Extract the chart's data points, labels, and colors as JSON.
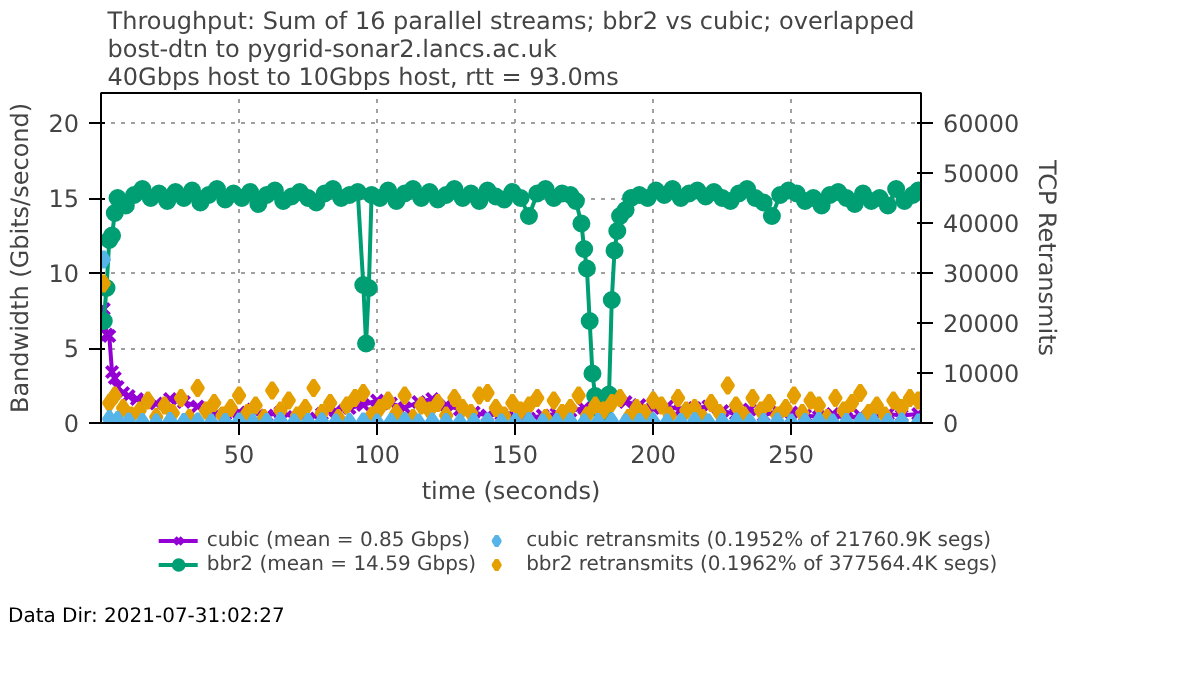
{
  "chart_data": {
    "type": "line",
    "title": "Throughput: Sum of 16 parallel streams; bbr2 vs cubic; overlapped\nbost-dtn to pygrid-sonar2.lancs.ac.uk\n40Gbps host to 10Gbps host, rtt = 93.0ms",
    "xlabel": "time (seconds)",
    "ylabel": "Bandwidth (Gbits/second)",
    "y2label": "TCP Retransmits",
    "xlim": [
      0,
      297
    ],
    "xticks": [
      50,
      100,
      150,
      200,
      250
    ],
    "ylim": [
      0,
      22
    ],
    "yticks": [
      0,
      5,
      10,
      15,
      20
    ],
    "y2lim": [
      0,
      66000
    ],
    "y2ticks": [
      0,
      10000,
      20000,
      30000,
      40000,
      50000,
      60000
    ],
    "grid": true,
    "legend": "bottom",
    "annotations": [
      "Data Dir: 2021-07-31:02:27"
    ],
    "series": [
      {
        "name": "cubic (mean = 0.85 Gbps)",
        "marker": "cross",
        "color": "#9400d3",
        "x": [
          1,
          2,
          3,
          4,
          5,
          6,
          8,
          10,
          13,
          16,
          20,
          25,
          30,
          35,
          40,
          45,
          50,
          55,
          60,
          65,
          70,
          75,
          80,
          85,
          90,
          95,
          100,
          105,
          110,
          115,
          120,
          125,
          130,
          135,
          140,
          145,
          150,
          155,
          160,
          165,
          170,
          175,
          180,
          185,
          190,
          195,
          200,
          205,
          210,
          215,
          220,
          225,
          230,
          235,
          240,
          245,
          250,
          255,
          260,
          265,
          270,
          275,
          280,
          285,
          290,
          296
        ],
        "values": [
          7.6,
          5.9,
          5.8,
          3.4,
          3.0,
          2.4,
          2.0,
          1.8,
          1.6,
          1.5,
          1.3,
          1.6,
          1.4,
          1.1,
          0.8,
          0.6,
          0.7,
          0.9,
          0.5,
          0.7,
          0.4,
          0.3,
          0.6,
          0.8,
          1.0,
          1.2,
          1.5,
          1.3,
          1.0,
          1.4,
          1.6,
          1.2,
          0.9,
          0.7,
          0.5,
          0.6,
          0.4,
          0.3,
          0.5,
          0.6,
          0.8,
          1.0,
          null,
          null,
          1.4,
          1.2,
          1.0,
          1.1,
          0.9,
          1.0,
          1.1,
          0.8,
          0.6,
          0.9,
          0.5,
          0.8,
          0.7,
          0.5,
          0.4,
          0.6,
          0.3,
          0.5,
          0.4,
          0.6,
          0.5,
          0.6
        ]
      },
      {
        "name": "bbr2 (mean = 14.59 Gbps)",
        "marker": "circle",
        "color": "#009e73",
        "x": [
          1,
          2,
          3,
          4,
          5,
          6,
          9,
          12,
          15,
          18,
          21,
          24,
          27,
          30,
          33,
          36,
          39,
          42,
          45,
          48,
          51,
          54,
          57,
          60,
          63,
          66,
          69,
          72,
          75,
          78,
          81,
          84,
          87,
          90,
          93,
          95,
          96,
          97,
          98,
          101,
          104,
          107,
          110,
          113,
          116,
          119,
          122,
          125,
          128,
          131,
          134,
          137,
          140,
          143,
          146,
          149,
          152,
          155,
          158,
          161,
          164,
          167,
          170,
          172,
          174,
          175,
          176,
          177,
          178,
          179,
          180,
          182,
          184,
          185,
          186,
          187,
          188,
          190,
          192,
          195,
          198,
          201,
          204,
          207,
          210,
          213,
          216,
          219,
          222,
          225,
          228,
          231,
          234,
          237,
          240,
          243,
          246,
          249,
          252,
          255,
          258,
          261,
          264,
          267,
          270,
          273,
          276,
          279,
          282,
          285,
          288,
          291,
          294,
          296
        ],
        "values": [
          6.8,
          9.0,
          12.2,
          12.5,
          14.0,
          15.0,
          14.5,
          15.2,
          15.6,
          15.0,
          15.3,
          14.8,
          15.4,
          15.0,
          15.5,
          14.7,
          15.2,
          15.6,
          14.9,
          15.3,
          15.0,
          15.4,
          14.6,
          15.2,
          15.5,
          14.8,
          15.1,
          15.4,
          15.0,
          14.7,
          15.3,
          15.6,
          15.0,
          15.2,
          15.4,
          9.2,
          5.3,
          9.0,
          15.2,
          15.0,
          15.5,
          14.8,
          15.3,
          15.6,
          15.0,
          15.4,
          14.9,
          15.2,
          15.6,
          15.0,
          15.3,
          14.8,
          15.5,
          15.1,
          14.9,
          15.4,
          15.0,
          13.8,
          15.3,
          15.6,
          15.0,
          15.3,
          15.2,
          14.8,
          13.3,
          11.6,
          10.3,
          6.8,
          3.3,
          1.8,
          1.0,
          0.7,
          1.9,
          8.2,
          11.5,
          12.8,
          13.8,
          14.2,
          15.0,
          15.2,
          15.0,
          15.5,
          15.2,
          15.6,
          15.0,
          15.3,
          15.5,
          15.1,
          15.4,
          15.0,
          14.8,
          15.3,
          15.6,
          15.0,
          14.7,
          13.8,
          15.2,
          15.5,
          15.3,
          14.8,
          15.0,
          14.5,
          15.2,
          15.4,
          15.0,
          14.6,
          15.3,
          14.8,
          15.0,
          14.5,
          15.6,
          14.8,
          15.2,
          15.5
        ]
      },
      {
        "name": "cubic retransmits (0.1952% of 21760.9K segs)",
        "type": "scatter",
        "marker": "diamond",
        "axis": "y2",
        "color": "#56b4e9",
        "x": [
          1,
          3,
          6,
          10,
          15,
          20,
          25,
          30,
          35,
          40,
          45,
          50,
          55,
          60,
          65,
          70,
          75,
          80,
          85,
          90,
          95,
          100,
          105,
          110,
          115,
          120,
          125,
          130,
          135,
          140,
          145,
          150,
          155,
          160,
          165,
          170,
          175,
          180,
          185,
          190,
          195,
          200,
          205,
          210,
          215,
          220,
          225,
          230,
          235,
          240,
          245,
          250,
          255,
          260,
          265,
          270,
          275,
          280,
          285,
          290,
          296
        ],
        "values": [
          32700,
          800,
          600,
          300,
          200,
          100,
          400,
          200,
          300,
          100,
          200,
          300,
          100,
          200,
          400,
          100,
          200,
          300,
          100,
          200,
          300,
          100,
          200,
          400,
          100,
          300,
          200,
          100,
          200,
          300,
          100,
          200,
          400,
          100,
          200,
          300,
          100,
          200,
          300,
          100,
          200,
          300,
          100,
          200,
          400,
          100,
          200,
          300,
          100,
          200,
          300,
          100,
          200,
          400,
          100,
          200,
          300,
          100,
          200,
          300,
          100
        ]
      },
      {
        "name": "bbr2 retransmits (0.1962% of 377564.4K segs)",
        "type": "scatter",
        "marker": "diamond",
        "axis": "y2",
        "color": "#e69f00",
        "x": [
          1,
          3,
          5,
          8,
          11,
          14,
          17,
          20,
          23,
          26,
          29,
          32,
          35,
          38,
          41,
          44,
          47,
          50,
          53,
          56,
          59,
          62,
          65,
          68,
          71,
          74,
          77,
          80,
          83,
          86,
          89,
          92,
          95,
          98,
          101,
          104,
          107,
          110,
          113,
          116,
          119,
          122,
          125,
          128,
          131,
          134,
          137,
          140,
          143,
          146,
          149,
          152,
          155,
          158,
          161,
          164,
          167,
          170,
          173,
          176,
          179,
          182,
          185,
          188,
          191,
          194,
          197,
          200,
          203,
          206,
          209,
          212,
          215,
          218,
          221,
          224,
          227,
          230,
          233,
          236,
          239,
          242,
          245,
          248,
          251,
          254,
          257,
          260,
          263,
          266,
          269,
          272,
          275,
          278,
          281,
          284,
          287,
          290,
          293,
          296
        ],
        "values": [
          27900,
          4000,
          5500,
          3000,
          1500,
          2500,
          4500,
          1200,
          3500,
          2000,
          5000,
          1000,
          7000,
          2500,
          4000,
          1500,
          3000,
          5500,
          2000,
          3500,
          1000,
          6500,
          2500,
          4500,
          1500,
          3000,
          7000,
          2000,
          4000,
          1000,
          3500,
          5000,
          6000,
          1500,
          3000,
          4500,
          2000,
          5500,
          1000,
          3500,
          2500,
          4000,
          1500,
          5000,
          3000,
          2000,
          5500,
          6000,
          3000,
          1500,
          4000,
          2500,
          3500,
          5000,
          1000,
          4500,
          2000,
          3000,
          5500,
          1500,
          3500,
          2500,
          4000,
          5000,
          1000,
          3000,
          2000,
          4500,
          3500,
          1500,
          5000,
          2500,
          3000,
          1000,
          4000,
          2000,
          7500,
          3500,
          1500,
          5000,
          2500,
          4000,
          1500,
          3000,
          5500,
          2000,
          4500,
          3500,
          1000,
          5000,
          2500,
          4000,
          6000,
          2000,
          3500,
          1500,
          4500,
          3000,
          5000,
          4500
        ]
      }
    ]
  }
}
